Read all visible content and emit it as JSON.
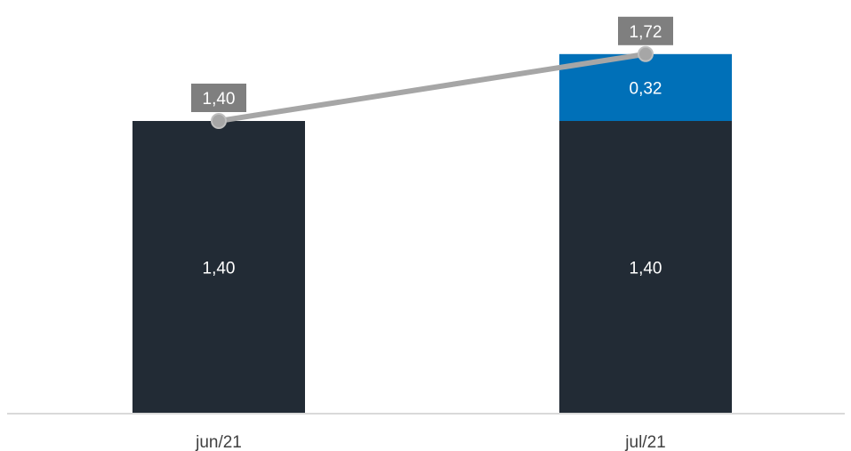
{
  "chart_data": {
    "type": "bar",
    "stacked": true,
    "categories": [
      "jun/21",
      "jul/21"
    ],
    "series": [
      {
        "values": [
          1.4,
          1.4
        ],
        "labels": [
          "1,40",
          "1,40"
        ],
        "color": "#222b35"
      },
      {
        "values": [
          0.0,
          0.32
        ],
        "labels": [
          "",
          "0,32"
        ],
        "color": "#0070b8"
      }
    ],
    "total_line": {
      "values": [
        1.4,
        1.72
      ],
      "labels": [
        "1,40",
        "1,72"
      ],
      "color": "#a6a6a6",
      "label_background": "#7f7f7f"
    },
    "ylim": [
      0,
      2
    ],
    "title": "",
    "xlabel": "",
    "ylabel": "",
    "grid": false,
    "axis_color": "#d9d9d9"
  }
}
